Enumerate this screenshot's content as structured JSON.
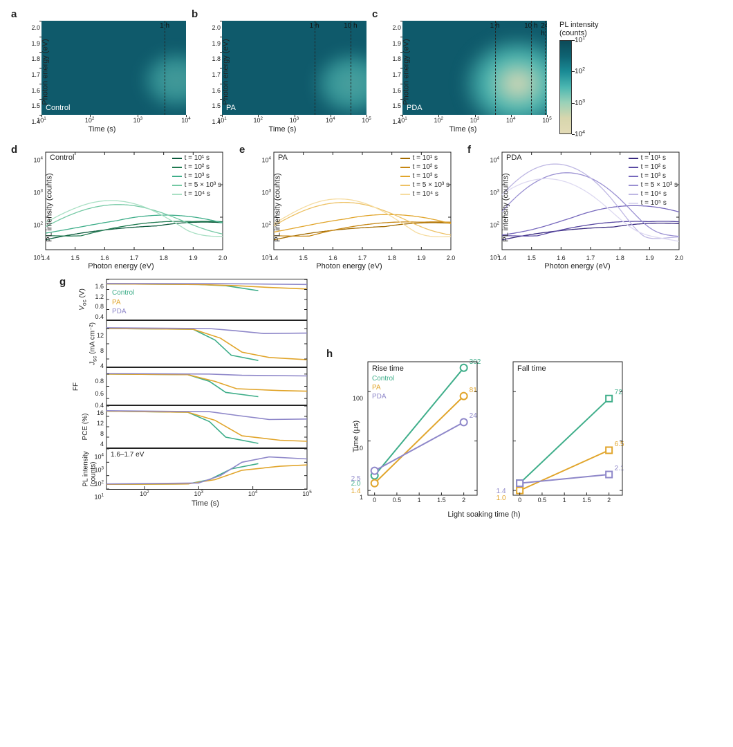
{
  "colors": {
    "control": "#3fae8a",
    "pa": "#e1a52b",
    "pda": "#8e87c9",
    "axis": "#222222",
    "bg": "#ffffff",
    "hm_dark": "#0f5a6b",
    "hm_light": "#e3dbb6"
  },
  "fonts": {
    "axis_label_pt": 11,
    "tick_pt": 9,
    "legend_pt": 10,
    "panel_letter_pt": 15
  },
  "heatmaps": {
    "ylabel": "Photon energy (eV)",
    "xlabel": "Time (s)",
    "ylim": [
      1.4,
      2.0
    ],
    "yticks": [
      1.4,
      1.5,
      1.6,
      1.7,
      1.8,
      1.9,
      2.0
    ],
    "colorbar": {
      "title1": "PL intensity",
      "title2": "(counts)",
      "ticks_exp": [
        1,
        2,
        3,
        4
      ],
      "scale": "log"
    },
    "panels": [
      {
        "letter": "a",
        "sample": "Control",
        "xlim_exp": [
          1,
          4
        ],
        "xticks_exp": [
          1,
          2,
          3,
          4
        ],
        "vlines": [
          {
            "t_exp": 3.556,
            "label": "1 h"
          }
        ],
        "glow": {
          "center_x_exp": 3.8,
          "center_y_eV": 1.62,
          "intensity": 0.35
        }
      },
      {
        "letter": "b",
        "sample": "PA",
        "xlim_exp": [
          1,
          5
        ],
        "xticks_exp": [
          1,
          2,
          3,
          4,
          5
        ],
        "vlines": [
          {
            "t_exp": 3.556,
            "label": "1 h"
          },
          {
            "t_exp": 4.556,
            "label": "10 h"
          }
        ],
        "glow": {
          "center_x_exp": 4.6,
          "center_y_eV": 1.6,
          "intensity": 0.45
        }
      },
      {
        "letter": "c",
        "sample": "PDA",
        "xlim_exp": [
          1,
          5
        ],
        "xticks_exp": [
          1,
          2,
          3,
          4,
          5
        ],
        "vlines": [
          {
            "t_exp": 3.556,
            "label": "1 h"
          },
          {
            "t_exp": 4.556,
            "label": "10 h"
          },
          {
            "t_exp": 4.938,
            "label": "24 h"
          }
        ],
        "glow": {
          "center_x_exp": 4.2,
          "center_y_eV": 1.6,
          "intensity": 1.0
        }
      }
    ]
  },
  "spectra": {
    "ylabel": "PL intensity (counts)",
    "xlabel": "Photon energy (eV)",
    "xlim": [
      1.4,
      2.0
    ],
    "xticks": [
      1.4,
      1.5,
      1.6,
      1.7,
      1.8,
      1.9,
      2.0
    ],
    "ylim_exp": [
      1,
      4
    ],
    "yticks_exp": [
      1,
      2,
      3,
      4
    ],
    "yscale": "log",
    "time_labels": [
      "t = 10¹ s",
      "t = 10² s",
      "t = 10³ s",
      "t = 5 × 10³ s",
      "t = 10⁴ s",
      "t = 10⁵ s"
    ],
    "panels": [
      {
        "letter": "d",
        "sample": "Control",
        "base_color": "#0b5a3c",
        "shades": [
          "#0b5a3c",
          "#1f7a50",
          "#3fae8a",
          "#74c9a4",
          "#a9e0c4"
        ],
        "n_series": 5,
        "series_peaks": [
          {
            "peak_eV": 1.92,
            "peak_cnt": 45,
            "width": 0.3
          },
          {
            "peak_eV": 1.9,
            "peak_cnt": 55,
            "width": 0.28
          },
          {
            "peak_eV": 1.8,
            "peak_cnt": 90,
            "width": 0.25
          },
          {
            "peak_eV": 1.65,
            "peak_cnt": 220,
            "width": 0.18
          },
          {
            "peak_eV": 1.62,
            "peak_cnt": 300,
            "width": 0.16
          }
        ]
      },
      {
        "letter": "e",
        "sample": "PA",
        "base_color": "#a36b00",
        "shades": [
          "#a36b00",
          "#c68612",
          "#e1a52b",
          "#edc164",
          "#f6dca0"
        ],
        "n_series": 5,
        "series_peaks": [
          {
            "peak_eV": 1.92,
            "peak_cnt": 42,
            "width": 0.3
          },
          {
            "peak_eV": 1.9,
            "peak_cnt": 52,
            "width": 0.28
          },
          {
            "peak_eV": 1.78,
            "peak_cnt": 95,
            "width": 0.25
          },
          {
            "peak_eV": 1.64,
            "peak_cnt": 260,
            "width": 0.17
          },
          {
            "peak_eV": 1.62,
            "peak_cnt": 340,
            "width": 0.15
          }
        ]
      },
      {
        "letter": "f",
        "sample": "PDA",
        "base_color": "#3a2a80",
        "shades": [
          "#3a2a80",
          "#5a4aa3",
          "#7668bd",
          "#9a90d2",
          "#beb7e3",
          "#ddd9f1"
        ],
        "n_series": 6,
        "series_peaks": [
          {
            "peak_eV": 1.92,
            "peak_cnt": 40,
            "width": 0.3
          },
          {
            "peak_eV": 1.9,
            "peak_cnt": 55,
            "width": 0.28
          },
          {
            "peak_eV": 1.85,
            "peak_cnt": 200,
            "width": 0.22
          },
          {
            "peak_eV": 1.62,
            "peak_cnt": 2300,
            "width": 0.13
          },
          {
            "peak_eV": 1.58,
            "peak_cnt": 4300,
            "width": 0.12
          },
          {
            "peak_eV": 1.55,
            "peak_cnt": 1500,
            "width": 0.14
          }
        ]
      }
    ]
  },
  "panel_g": {
    "letter": "g",
    "xlabel": "Time (s)",
    "xlim_exp": [
      1.3,
      5
    ],
    "xticks_exp": [
      2,
      3,
      4,
      5
    ],
    "xscale": "log",
    "series": [
      "Control",
      "PA",
      "PDA"
    ],
    "series_colors": [
      "#3fae8a",
      "#e1a52b",
      "#8e87c9"
    ],
    "subplots": [
      {
        "ylabel": "V_oc (V)",
        "ylim": [
          0,
          1.6
        ],
        "yticks": [
          0.4,
          0.8,
          1.2,
          1.6
        ],
        "height": 60,
        "legend": true,
        "curves": [
          {
            "pts": [
              [
                1.3,
                1.42
              ],
              [
                3.0,
                1.4
              ],
              [
                3.5,
                1.35
              ],
              [
                3.9,
                1.22
              ],
              [
                4.1,
                1.15
              ]
            ]
          },
          {
            "pts": [
              [
                1.3,
                1.42
              ],
              [
                3.0,
                1.4
              ],
              [
                3.7,
                1.35
              ],
              [
                4.3,
                1.28
              ],
              [
                5.0,
                1.22
              ]
            ]
          },
          {
            "pts": [
              [
                1.3,
                1.44
              ],
              [
                3.4,
                1.43
              ],
              [
                4.0,
                1.42
              ],
              [
                5.0,
                1.4
              ]
            ]
          }
        ]
      },
      {
        "ylabel": "J_sc (mA cm⁻²)",
        "ylim": [
          2,
          14
        ],
        "yticks": [
          4,
          8,
          12
        ],
        "height": 68,
        "curves": [
          {
            "pts": [
              [
                1.3,
                12.0
              ],
              [
                2.9,
                11.8
              ],
              [
                3.3,
                9.0
              ],
              [
                3.6,
                5.0
              ],
              [
                4.1,
                3.6
              ]
            ]
          },
          {
            "pts": [
              [
                1.3,
                12.0
              ],
              [
                2.9,
                11.8
              ],
              [
                3.4,
                9.5
              ],
              [
                3.8,
                5.8
              ],
              [
                4.3,
                4.4
              ],
              [
                5.0,
                3.8
              ]
            ]
          },
          {
            "pts": [
              [
                1.3,
                12.2
              ],
              [
                3.2,
                12.0
              ],
              [
                3.7,
                11.4
              ],
              [
                4.2,
                10.7
              ],
              [
                5.0,
                10.8
              ]
            ]
          }
        ]
      },
      {
        "ylabel": "FF",
        "ylim": [
          0.3,
          0.9
        ],
        "yticks": [
          0.4,
          0.6,
          0.8
        ],
        "height": 55,
        "curves": [
          {
            "pts": [
              [
                1.3,
                0.8
              ],
              [
                2.8,
                0.79
              ],
              [
                3.2,
                0.68
              ],
              [
                3.5,
                0.5
              ],
              [
                4.1,
                0.43
              ]
            ]
          },
          {
            "pts": [
              [
                1.3,
                0.8
              ],
              [
                2.8,
                0.79
              ],
              [
                3.3,
                0.68
              ],
              [
                3.7,
                0.56
              ],
              [
                4.5,
                0.53
              ],
              [
                5.0,
                0.52
              ]
            ]
          },
          {
            "pts": [
              [
                1.3,
                0.81
              ],
              [
                3.2,
                0.8
              ],
              [
                3.8,
                0.78
              ],
              [
                5.0,
                0.77
              ]
            ]
          }
        ]
      },
      {
        "ylabel": "PCE (%)",
        "ylim": [
          0,
          16
        ],
        "yticks": [
          4,
          8,
          12,
          16
        ],
        "height": 62,
        "curves": [
          {
            "pts": [
              [
                1.3,
                14.0
              ],
              [
                2.8,
                13.6
              ],
              [
                3.2,
                10.0
              ],
              [
                3.5,
                4.0
              ],
              [
                4.1,
                1.6
              ]
            ]
          },
          {
            "pts": [
              [
                1.3,
                14.0
              ],
              [
                2.8,
                13.6
              ],
              [
                3.3,
                10.5
              ],
              [
                3.8,
                4.5
              ],
              [
                4.5,
                2.8
              ],
              [
                5.0,
                2.4
              ]
            ]
          },
          {
            "pts": [
              [
                1.3,
                14.2
              ],
              [
                3.2,
                13.8
              ],
              [
                3.7,
                12.4
              ],
              [
                4.3,
                10.8
              ],
              [
                5.0,
                11.0
              ]
            ]
          }
        ]
      },
      {
        "ylabel": "PL intensity\\n(counts)",
        "ylim_exp": [
          1,
          4
        ],
        "yticks_exp": [
          1,
          2,
          3,
          4
        ],
        "height": 60,
        "yscale": "log",
        "annot": "1.6–1.7 eV",
        "curves": [
          {
            "pts": [
              [
                1.3,
                1.35
              ],
              [
                2.8,
                1.38
              ],
              [
                3.2,
                1.7
              ],
              [
                3.6,
                2.5
              ],
              [
                4.1,
                2.9
              ]
            ]
          },
          {
            "pts": [
              [
                1.3,
                1.35
              ],
              [
                2.8,
                1.38
              ],
              [
                3.3,
                1.7
              ],
              [
                3.8,
                2.4
              ],
              [
                4.5,
                2.7
              ],
              [
                5.0,
                2.8
              ]
            ]
          },
          {
            "pts": [
              [
                1.3,
                1.38
              ],
              [
                3.0,
                1.45
              ],
              [
                3.4,
                2.0
              ],
              [
                3.8,
                3.0
              ],
              [
                4.3,
                3.4
              ],
              [
                5.0,
                3.25
              ]
            ]
          }
        ]
      }
    ]
  },
  "panel_h": {
    "letter": "h",
    "ylabel": "Time (µs)",
    "ylim": [
      0.8,
      400
    ],
    "yscale": "log",
    "yticks": [
      1,
      10,
      100
    ],
    "xlabel": "Light soaking time (h)",
    "xlim": [
      -0.15,
      2.3
    ],
    "xticks": [
      0,
      0.5,
      1.0,
      1.5,
      2.0
    ],
    "series": [
      "Control",
      "PA",
      "PDA"
    ],
    "series_colors": [
      "#3fae8a",
      "#e1a52b",
      "#8e87c9"
    ],
    "plots": [
      {
        "title": "Rise time",
        "marker": "circle",
        "legend": true,
        "data": [
          {
            "series": "Control",
            "x": [
              0,
              2
            ],
            "y": [
              2.0,
              302
            ],
            "labels": [
              "2.0",
              "302"
            ]
          },
          {
            "series": "PA",
            "x": [
              0,
              2
            ],
            "y": [
              1.4,
              81
            ],
            "labels": [
              "1.4",
              "81"
            ]
          },
          {
            "series": "PDA",
            "x": [
              0,
              2
            ],
            "y": [
              2.5,
              24
            ],
            "labels": [
              "2.5",
              "24"
            ]
          }
        ]
      },
      {
        "title": "Fall time",
        "marker": "square",
        "legend": false,
        "data": [
          {
            "series": "Control",
            "x": [
              0,
              2
            ],
            "y": [
              1.4,
              72
            ],
            "labels": [
              "",
              "72"
            ]
          },
          {
            "series": "PA",
            "x": [
              0,
              2
            ],
            "y": [
              1.0,
              6.5
            ],
            "labels": [
              "1.0",
              "6.5"
            ]
          },
          {
            "series": "PDA",
            "x": [
              0,
              2
            ],
            "y": [
              1.4,
              2.1
            ],
            "labels": [
              "1.4",
              "2.1"
            ]
          }
        ]
      }
    ]
  }
}
